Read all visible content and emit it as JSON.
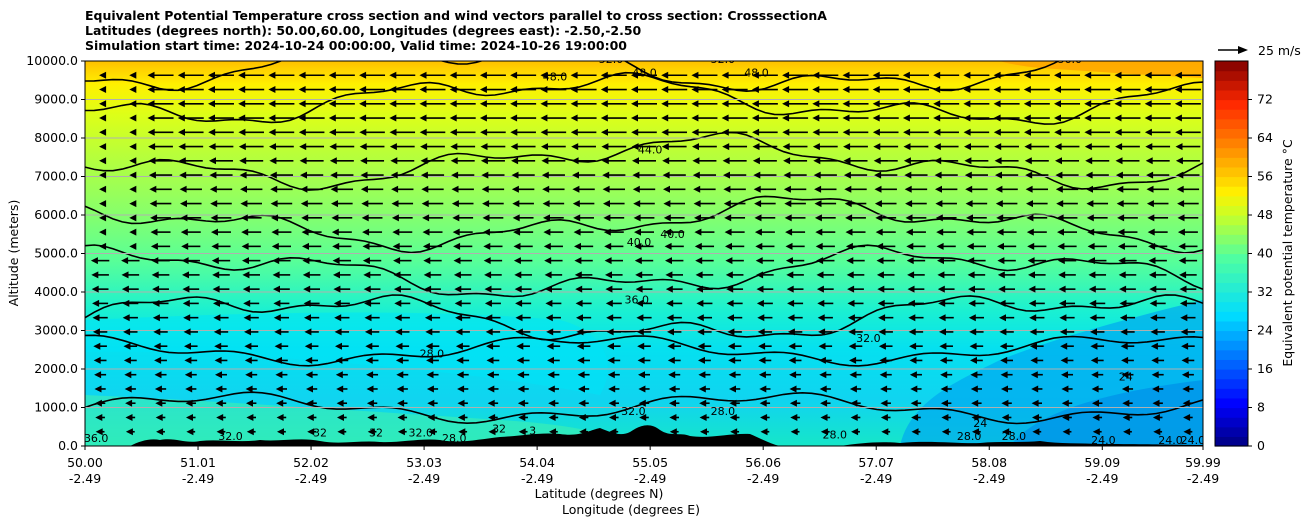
{
  "chart_data": {
    "type": "heatmap",
    "title_lines": [
      "Equivalent Potential Temperature cross section and wind vectors parallel to cross section: CrosssectionA",
      "Latitudes (degrees north): 50.00,60.00, Longitudes (degrees east): -2.50,-2.50",
      "Simulation start time: 2024-10-24 00:00:00, Valid time: 2024-10-26 19:00:00"
    ],
    "ylabel": "Altitude (meters)",
    "xlabel_lat": "Latitude (degrees N)",
    "xlabel_lon": "Longitude (degrees E)",
    "ylim": [
      0,
      10000
    ],
    "y_ticks": [
      "0.0",
      "1000.0",
      "2000.0",
      "3000.0",
      "4000.0",
      "5000.0",
      "6000.0",
      "7000.0",
      "8000.0",
      "9000.0",
      "10000.0"
    ],
    "x_ticks_lat": [
      "50.00",
      "51.01",
      "52.02",
      "53.03",
      "54.04",
      "55.05",
      "56.06",
      "57.07",
      "58.08",
      "59.09",
      "59.99"
    ],
    "x_ticks_lon": [
      "-2.49",
      "-2.49",
      "-2.49",
      "-2.49",
      "-2.49",
      "-2.49",
      "-2.49",
      "-2.49",
      "-2.49",
      "-2.49",
      "-2.49"
    ],
    "colorbar": {
      "label": "Equivalent potential temperature °C",
      "range": [
        0,
        80
      ],
      "ticks": [
        "0",
        "8",
        "16",
        "24",
        "32",
        "40",
        "48",
        "56",
        "64",
        "72"
      ]
    },
    "quiver_key": "25 m/s",
    "profile_levels_m": [
      0,
      1000,
      2000,
      3000,
      4000,
      5000,
      6000,
      7000,
      8000,
      9000,
      10000
    ],
    "profile_theta_c": [
      30,
      29,
      28.5,
      31,
      34,
      38,
      40.5,
      43,
      45.5,
      48,
      53
    ],
    "contour_labels": [
      {
        "text": "36.0",
        "lat": 50.1,
        "alt": 100
      },
      {
        "text": "32.0",
        "lat": 51.3,
        "alt": 150
      },
      {
        "text": "32",
        "lat": 52.1,
        "alt": 250
      },
      {
        "text": "32",
        "lat": 52.6,
        "alt": 250
      },
      {
        "text": "32.0",
        "lat": 53.0,
        "alt": 250
      },
      {
        "text": "28.0",
        "lat": 53.3,
        "alt": 100
      },
      {
        "text": "32",
        "lat": 53.7,
        "alt": 350
      },
      {
        "text": "3",
        "lat": 54.0,
        "alt": 300
      },
      {
        "text": "28.0",
        "lat": 53.1,
        "alt": 2300
      },
      {
        "text": "36.0",
        "lat": 54.93,
        "alt": 3700
      },
      {
        "text": "40.0",
        "lat": 54.95,
        "alt": 5200
      },
      {
        "text": "40.0",
        "lat": 55.25,
        "alt": 5400
      },
      {
        "text": "44.0",
        "lat": 55.05,
        "alt": 7600
      },
      {
        "text": "48.0",
        "lat": 54.2,
        "alt": 9500
      },
      {
        "text": "48.0",
        "lat": 55.0,
        "alt": 9600
      },
      {
        "text": "48.0",
        "lat": 56.0,
        "alt": 9600
      },
      {
        "text": "52.0",
        "lat": 54.7,
        "alt": 9950
      },
      {
        "text": "52.0",
        "lat": 55.7,
        "alt": 9950
      },
      {
        "text": "56.0",
        "lat": 58.8,
        "alt": 9950
      },
      {
        "text": "32.0",
        "lat": 57.0,
        "alt": 2700
      },
      {
        "text": "32.0",
        "lat": 54.9,
        "alt": 800
      },
      {
        "text": "28.0",
        "lat": 55.7,
        "alt": 800
      },
      {
        "text": "28.0",
        "lat": 56.7,
        "alt": 200
      },
      {
        "text": "28.0",
        "lat": 57.9,
        "alt": 150
      },
      {
        "text": "28.0",
        "lat": 58.3,
        "alt": 150
      },
      {
        "text": "24.0",
        "lat": 59.1,
        "alt": 50
      },
      {
        "text": "24.0",
        "lat": 59.7,
        "alt": 50
      },
      {
        "text": "24.0",
        "lat": 59.9,
        "alt": 50
      },
      {
        "text": "24",
        "lat": 58.0,
        "alt": 500
      },
      {
        "text": "24",
        "lat": 59.3,
        "alt": 1700
      }
    ]
  }
}
